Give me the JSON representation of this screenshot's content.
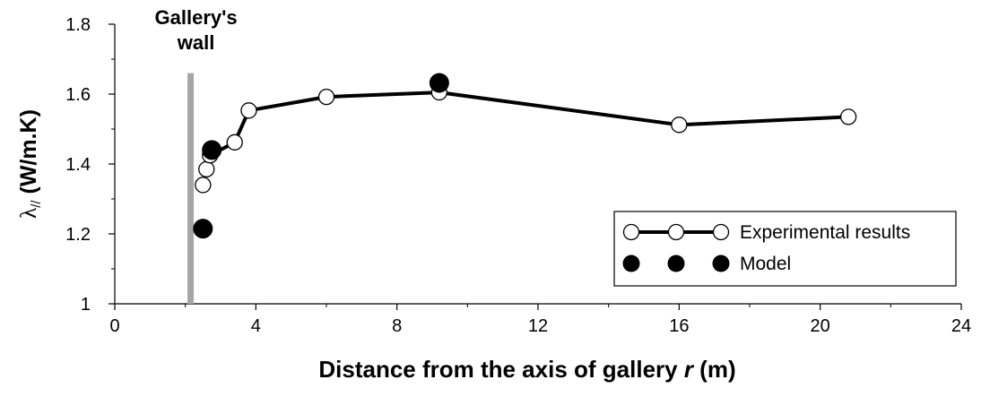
{
  "chart_data": {
    "type": "line",
    "xlabel_prefix": "Distance from the axis of gallery ",
    "xlabel_var": "r",
    "xlabel_suffix": " (m)",
    "ylabel_symbol": "λ",
    "ylabel_sub": "//",
    "ylabel_unit": " (W/m.K)",
    "xlim": [
      0,
      24
    ],
    "ylim": [
      1.0,
      1.8
    ],
    "x_ticks": [
      "0",
      "4",
      "8",
      "12",
      "16",
      "20",
      "24"
    ],
    "y_ticks": [
      "1",
      "1.2",
      "1.4",
      "1.6",
      "1.8"
    ],
    "wall": {
      "x": 2.15,
      "y_from": 1.0,
      "y_to": 1.66,
      "label_line1": "Gallery's",
      "label_line2": "wall",
      "color": "#a6a6a6"
    },
    "series": [
      {
        "name": "Experimental results",
        "style": "line-open-circle",
        "color": "#000000",
        "points": [
          [
            2.5,
            1.34
          ],
          [
            2.6,
            1.385
          ],
          [
            2.7,
            1.425
          ],
          [
            3.4,
            1.462
          ],
          [
            3.8,
            1.553
          ],
          [
            6.0,
            1.592
          ],
          [
            9.2,
            1.605
          ],
          [
            16.0,
            1.512
          ],
          [
            20.8,
            1.535
          ]
        ]
      },
      {
        "name": "Model",
        "style": "filled-circle",
        "color": "#000000",
        "points": [
          [
            2.5,
            1.215
          ],
          [
            2.75,
            1.44
          ],
          [
            9.2,
            1.632
          ]
        ]
      }
    ],
    "legend_position": "lower-right"
  }
}
